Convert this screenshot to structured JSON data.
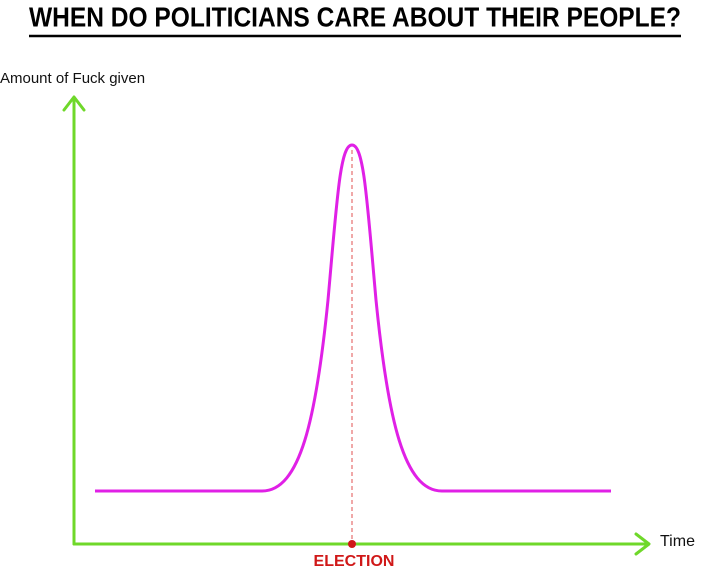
{
  "title": "WHEN DO POLITICIANS CARE ABOUT THEIR PEOPLE?",
  "y_axis_label": "Amount of Fuck given",
  "x_axis_label": "Time",
  "marker_label": "ELECTION"
}
